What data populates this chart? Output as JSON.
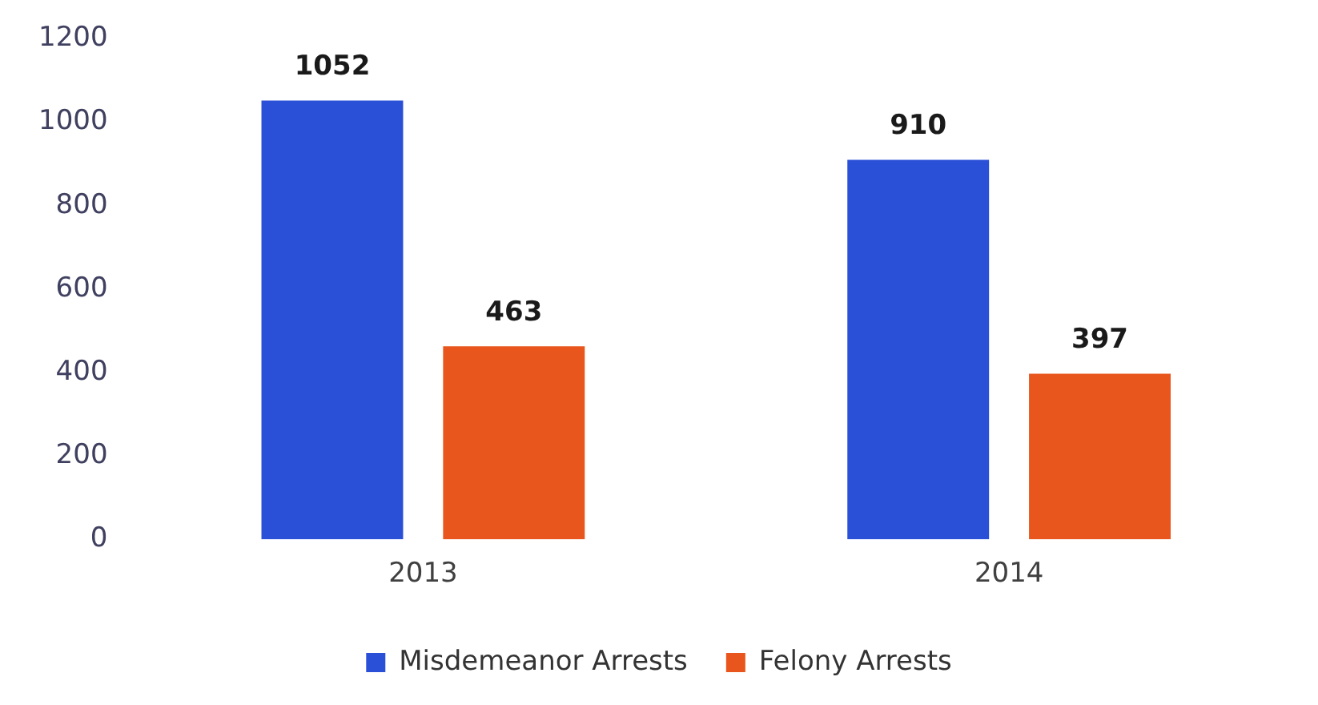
{
  "chart_data": {
    "type": "bar",
    "categories": [
      "2013",
      "2014"
    ],
    "series": [
      {
        "name": "Misdemeanor Arrests",
        "color": "#2b50d8",
        "values": [
          1052,
          910
        ]
      },
      {
        "name": "Felony Arrests",
        "color": "#e8561e",
        "values": [
          463,
          397
        ]
      }
    ],
    "ylim": [
      0,
      1200
    ],
    "yticks": [
      0,
      200,
      400,
      600,
      800,
      1000,
      1200
    ],
    "grid": false,
    "legend": "bottom",
    "data_labels": true
  }
}
